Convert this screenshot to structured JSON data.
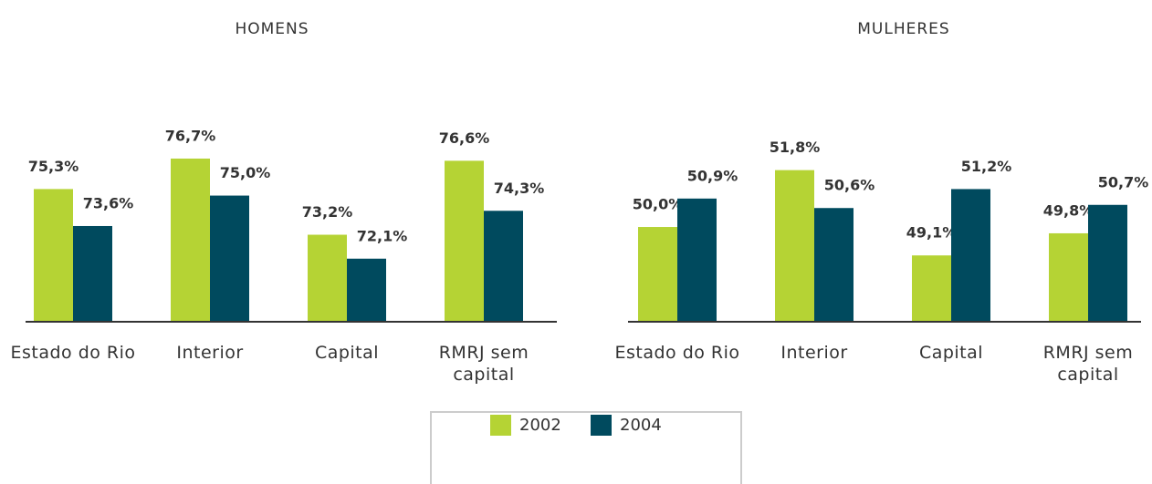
{
  "chart_data": [
    {
      "type": "bar",
      "title": "HOMENS",
      "categories": [
        "Estado do Rio",
        "Interior",
        "Capital",
        "RMRJ sem capital"
      ],
      "series": [
        {
          "name": "2002",
          "color": "#b5d334",
          "values": [
            75.3,
            76.7,
            73.2,
            76.6
          ],
          "value_labels": [
            "75,3%",
            "76,7%",
            "73,2%",
            "76,6%"
          ]
        },
        {
          "name": "2004",
          "color": "#004a5e",
          "values": [
            73.6,
            75.0,
            72.1,
            74.3
          ],
          "value_labels": [
            "73,6%",
            "75,0%",
            "72,1%",
            "74,3%"
          ]
        }
      ],
      "ylim": [
        69.2,
        79.8
      ]
    },
    {
      "type": "bar",
      "title": "MULHERES",
      "categories": [
        "Estado do Rio",
        "Interior",
        "Capital",
        "RMRJ sem capital"
      ],
      "series": [
        {
          "name": "2002",
          "color": "#b5d334",
          "values": [
            50.0,
            51.8,
            49.1,
            49.8
          ],
          "value_labels": [
            "50,0%",
            "51,8%",
            "49,1%",
            "49,8%"
          ]
        },
        {
          "name": "2004",
          "color": "#004a5e",
          "values": [
            50.9,
            50.6,
            51.2,
            50.7
          ],
          "value_labels": [
            "50,9%",
            "50,6%",
            "51,2%",
            "50,7%"
          ]
        }
      ],
      "ylim": [
        47.0,
        54.3
      ]
    }
  ]
}
